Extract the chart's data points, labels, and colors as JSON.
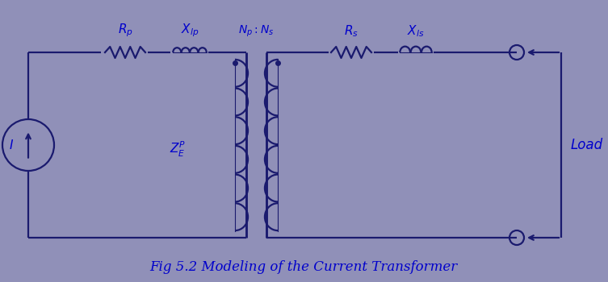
{
  "background_color": "#9090b8",
  "line_color": "#1a1a6e",
  "text_color": "#0000cc",
  "title": "Fig 5.2 Modeling of the Current Transformer",
  "title_fontsize": 12,
  "label_fontsize": 11,
  "figsize": [
    7.53,
    3.5
  ],
  "dpi": 100
}
